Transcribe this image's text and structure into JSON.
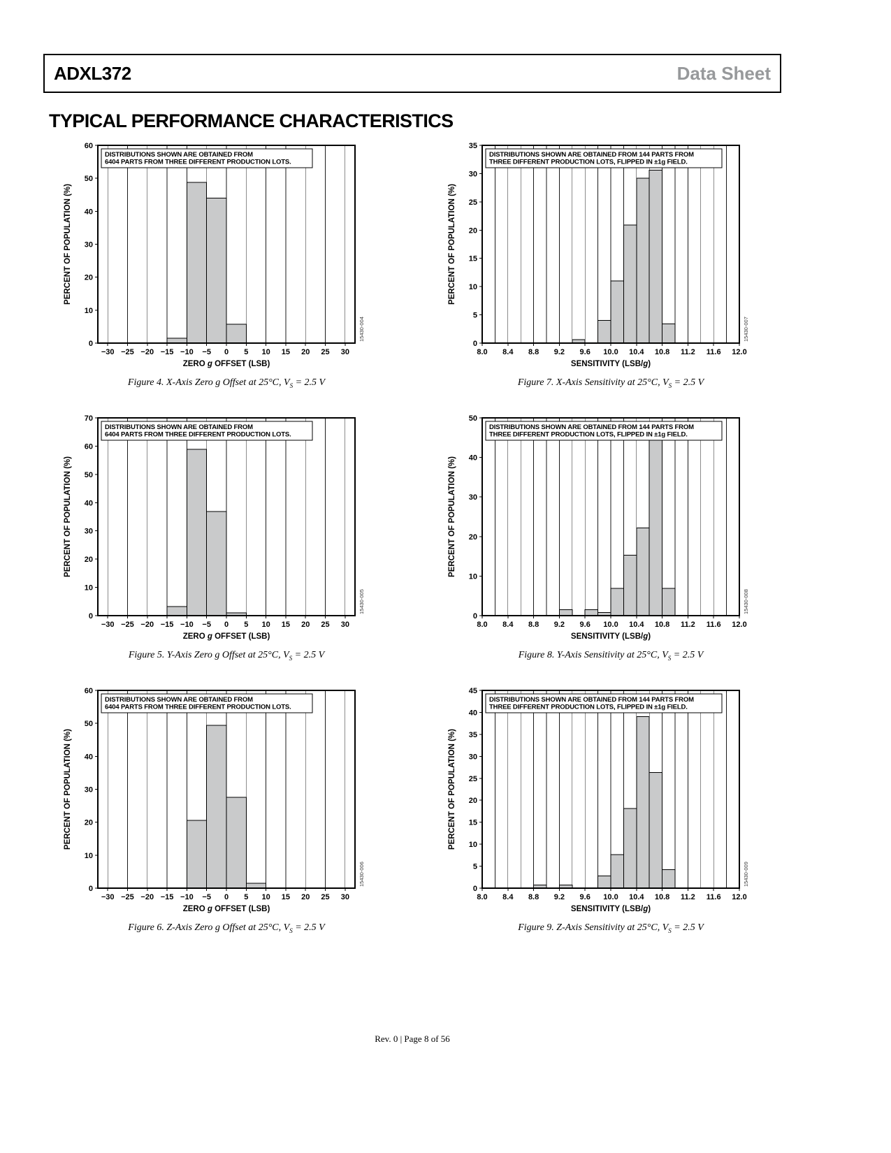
{
  "page": {
    "header": {
      "part_number": "ADXL372",
      "doc_type": "Data Sheet"
    },
    "section_title": "TYPICAL PERFORMANCE CHARACTERISTICS",
    "footer": "Rev. 0 | Page 8 of 56"
  },
  "colors": {
    "bar_fill": "#c9cacb",
    "doc_type_gray": "#97999b"
  },
  "chart_data": [
    {
      "id": "figure-4",
      "type": "bar",
      "note_lines": [
        "DISTRIBUTIONS SHOWN ARE OBTAINED FROM",
        "6404 PARTS FROM THREE DIFFERENT PRODUCTION LOTS."
      ],
      "xlabel": {
        "pre": "ZERO ",
        "italic": "g",
        "post": " OFFSET (LSB)"
      },
      "ylabel": "PERCENT OF POPULATION (%)",
      "watermark": "15430-004",
      "x_axis": {
        "min": -32.5,
        "max": 32.5,
        "grid": {
          "from": -30,
          "to": 30,
          "step": 5
        },
        "tick_values": [
          -30,
          -25,
          -20,
          -15,
          -10,
          -5,
          0,
          5,
          10,
          15,
          20,
          25,
          30
        ],
        "tick_labels": [
          "−30",
          "−25",
          "−20",
          "−15",
          "−10",
          "−5",
          "0",
          "5",
          "10",
          "15",
          "20",
          "25",
          "30"
        ]
      },
      "y_axis": {
        "min": 0,
        "max": 60,
        "tick_values": [
          0,
          10,
          20,
          30,
          40,
          50,
          60
        ],
        "tick_labels": [
          "0",
          "10",
          "20",
          "30",
          "40",
          "50",
          "60"
        ]
      },
      "bin_width": 5,
      "bars": [
        {
          "x": -15,
          "pct": 1.5
        },
        {
          "x": -10,
          "pct": 48.8
        },
        {
          "x": -5,
          "pct": 44.0
        },
        {
          "x": 0,
          "pct": 5.7
        }
      ],
      "caption": {
        "pre": "Figure 4. X-Axis Zero g Offset at 25°C, V",
        "sub": "S",
        "post": " = 2.5 V"
      }
    },
    {
      "id": "figure-7",
      "type": "bar",
      "note_lines": [
        "DISTRIBUTIONS SHOWN ARE OBTAINED FROM 144 PARTS FROM",
        "THREE DIFFERENT PRODUCTION LOTS, FLIPPED IN ±1g FIELD."
      ],
      "xlabel": {
        "pre": "SENSITIVITY (LSB/",
        "italic": "g",
        "post": ")"
      },
      "ylabel": "PERCENT OF POPULATION (%)",
      "watermark": "15430-007",
      "x_axis": {
        "min": 8.0,
        "max": 12.0,
        "grid": {
          "from": 8.2,
          "to": 11.8,
          "step": 0.2
        },
        "tick_values": [
          8.0,
          8.4,
          8.8,
          9.2,
          9.6,
          10.0,
          10.4,
          10.8,
          11.2,
          11.6,
          12.0
        ],
        "tick_labels": [
          "8.0",
          "8.4",
          "8.8",
          "9.2",
          "9.6",
          "10.0",
          "10.4",
          "10.8",
          "11.2",
          "11.6",
          "12.0"
        ]
      },
      "y_axis": {
        "min": 0,
        "max": 35,
        "tick_values": [
          0,
          5,
          10,
          15,
          20,
          25,
          30,
          35
        ],
        "tick_labels": [
          "0",
          "5",
          "10",
          "15",
          "20",
          "25",
          "30",
          "35"
        ]
      },
      "bin_width": 0.2,
      "bars": [
        {
          "x": 9.4,
          "pct": 0.6
        },
        {
          "x": 9.8,
          "pct": 4.0
        },
        {
          "x": 10.0,
          "pct": 11.0
        },
        {
          "x": 10.2,
          "pct": 20.9
        },
        {
          "x": 10.4,
          "pct": 29.2
        },
        {
          "x": 10.6,
          "pct": 30.6
        },
        {
          "x": 10.8,
          "pct": 3.4
        }
      ],
      "caption": {
        "pre": "Figure 7. X-Axis Sensitivity at 25°C, V",
        "sub": "S",
        "post": " = 2.5 V"
      }
    },
    {
      "id": "figure-5",
      "type": "bar",
      "note_lines": [
        "DISTRIBUTIONS SHOWN ARE OBTAINED FROM",
        "6404 PARTS FROM THREE DIFFERENT PRODUCTION LOTS."
      ],
      "xlabel": {
        "pre": "ZERO ",
        "italic": "g",
        "post": " OFFSET (LSB)"
      },
      "ylabel": "PERCENT OF POPULATION (%)",
      "watermark": "15430-005",
      "x_axis": {
        "min": -32.5,
        "max": 32.5,
        "grid": {
          "from": -30,
          "to": 30,
          "step": 5
        },
        "tick_values": [
          -30,
          -25,
          -20,
          -15,
          -10,
          -5,
          0,
          5,
          10,
          15,
          20,
          25,
          30
        ],
        "tick_labels": [
          "−30",
          "−25",
          "−20",
          "−15",
          "−10",
          "−5",
          "0",
          "5",
          "10",
          "15",
          "20",
          "25",
          "30"
        ]
      },
      "y_axis": {
        "min": 0,
        "max": 70,
        "tick_values": [
          0,
          10,
          20,
          30,
          40,
          50,
          60,
          70
        ],
        "tick_labels": [
          "0",
          "10",
          "20",
          "30",
          "40",
          "50",
          "60",
          "70"
        ]
      },
      "bin_width": 5,
      "bars": [
        {
          "x": -15,
          "pct": 3.2
        },
        {
          "x": -10,
          "pct": 58.9
        },
        {
          "x": -5,
          "pct": 36.9
        },
        {
          "x": 0,
          "pct": 1.0
        }
      ],
      "caption": {
        "pre": "Figure 5. Y-Axis Zero g Offset at 25°C, V",
        "sub": "S",
        "post": " = 2.5 V"
      }
    },
    {
      "id": "figure-8",
      "type": "bar",
      "note_lines": [
        "DISTRIBUTIONS SHOWN ARE OBTAINED FROM 144 PARTS FROM",
        "THREE DIFFERENT PRODUCTION LOTS, FLIPPED IN ±1g FIELD."
      ],
      "xlabel": {
        "pre": "SENSITIVITY (LSB/",
        "italic": "g",
        "post": ")"
      },
      "ylabel": "PERCENT OF POPULATION (%)",
      "watermark": "15430-008",
      "x_axis": {
        "min": 8.0,
        "max": 12.0,
        "grid": {
          "from": 8.2,
          "to": 11.8,
          "step": 0.2
        },
        "tick_values": [
          8.0,
          8.4,
          8.8,
          9.2,
          9.6,
          10.0,
          10.4,
          10.8,
          11.2,
          11.6,
          12.0
        ],
        "tick_labels": [
          "8.0",
          "8.4",
          "8.8",
          "9.2",
          "9.6",
          "10.0",
          "10.4",
          "10.8",
          "11.2",
          "11.6",
          "12.0"
        ]
      },
      "y_axis": {
        "min": 0,
        "max": 50,
        "tick_values": [
          0,
          10,
          20,
          30,
          40,
          50
        ],
        "tick_labels": [
          "0",
          "10",
          "20",
          "30",
          "40",
          "50"
        ]
      },
      "bin_width": 0.2,
      "bars": [
        {
          "x": 9.2,
          "pct": 1.5
        },
        {
          "x": 9.6,
          "pct": 1.5
        },
        {
          "x": 9.8,
          "pct": 0.8
        },
        {
          "x": 10.0,
          "pct": 6.9
        },
        {
          "x": 10.2,
          "pct": 15.3
        },
        {
          "x": 10.4,
          "pct": 22.2
        },
        {
          "x": 10.6,
          "pct": 45.0
        },
        {
          "x": 10.8,
          "pct": 6.9
        }
      ],
      "caption": {
        "pre": "Figure 8. Y-Axis Sensitivity at 25°C, V",
        "sub": "S",
        "post": " = 2.5 V"
      }
    },
    {
      "id": "figure-6",
      "type": "bar",
      "note_lines": [
        "DISTRIBUTIONS SHOWN ARE OBTAINED FROM",
        "6404 PARTS FROM THREE DIFFERENT PRODUCTION LOTS."
      ],
      "xlabel": {
        "pre": "ZERO ",
        "italic": "g",
        "post": " OFFSET (LSB)"
      },
      "ylabel": "PERCENT OF POPULATION (%)",
      "watermark": "15430-006",
      "x_axis": {
        "min": -32.5,
        "max": 32.5,
        "grid": {
          "from": -30,
          "to": 30,
          "step": 5
        },
        "tick_values": [
          -30,
          -25,
          -20,
          -15,
          -10,
          -5,
          0,
          5,
          10,
          15,
          20,
          25,
          30
        ],
        "tick_labels": [
          "−30",
          "−25",
          "−20",
          "−15",
          "−10",
          "−5",
          "0",
          "5",
          "10",
          "15",
          "20",
          "25",
          "30"
        ]
      },
      "y_axis": {
        "min": 0,
        "max": 60,
        "tick_values": [
          0,
          10,
          20,
          30,
          40,
          50,
          60
        ],
        "tick_labels": [
          "0",
          "10",
          "20",
          "30",
          "40",
          "50",
          "60"
        ]
      },
      "bin_width": 5,
      "bars": [
        {
          "x": -10,
          "pct": 20.6
        },
        {
          "x": -5,
          "pct": 49.4
        },
        {
          "x": 0,
          "pct": 27.6
        },
        {
          "x": 5,
          "pct": 1.5
        }
      ],
      "caption": {
        "pre": "Figure 6. Z-Axis Zero g Offset at 25°C, V",
        "sub": "S",
        "post": " = 2.5 V"
      }
    },
    {
      "id": "figure-9",
      "type": "bar",
      "note_lines": [
        "DISTRIBUTIONS SHOWN ARE OBTAINED FROM 144 PARTS FROM",
        "THREE DIFFERENT PRODUCTION LOTS, FLIPPED IN ±1g FIELD."
      ],
      "xlabel": {
        "pre": "SENSITIVITY (LSB/",
        "italic": "g",
        "post": ")"
      },
      "ylabel": "PERCENT OF POPULATION (%)",
      "watermark": "15430-009",
      "x_axis": {
        "min": 8.0,
        "max": 12.0,
        "grid": {
          "from": 8.2,
          "to": 11.8,
          "step": 0.2
        },
        "tick_values": [
          8.0,
          8.4,
          8.8,
          9.2,
          9.6,
          10.0,
          10.4,
          10.8,
          11.2,
          11.6,
          12.0
        ],
        "tick_labels": [
          "8.0",
          "8.4",
          "8.8",
          "9.2",
          "9.6",
          "10.0",
          "10.4",
          "10.8",
          "11.2",
          "11.6",
          "12.0"
        ]
      },
      "y_axis": {
        "min": 0,
        "max": 45,
        "tick_values": [
          0,
          5,
          10,
          15,
          20,
          25,
          30,
          35,
          40,
          45
        ],
        "tick_labels": [
          "0",
          "5",
          "10",
          "15",
          "20",
          "25",
          "30",
          "35",
          "40",
          "45"
        ]
      },
      "bin_width": 0.2,
      "bars": [
        {
          "x": 8.8,
          "pct": 0.7
        },
        {
          "x": 9.2,
          "pct": 0.7
        },
        {
          "x": 9.8,
          "pct": 2.8
        },
        {
          "x": 10.0,
          "pct": 7.6
        },
        {
          "x": 10.2,
          "pct": 18.1
        },
        {
          "x": 10.4,
          "pct": 39.0
        },
        {
          "x": 10.6,
          "pct": 26.3
        },
        {
          "x": 10.8,
          "pct": 4.2
        }
      ],
      "caption": {
        "pre": "Figure 9. Z-Axis Sensitivity at 25°C, V",
        "sub": "S",
        "post": " = 2.5 V"
      }
    }
  ]
}
